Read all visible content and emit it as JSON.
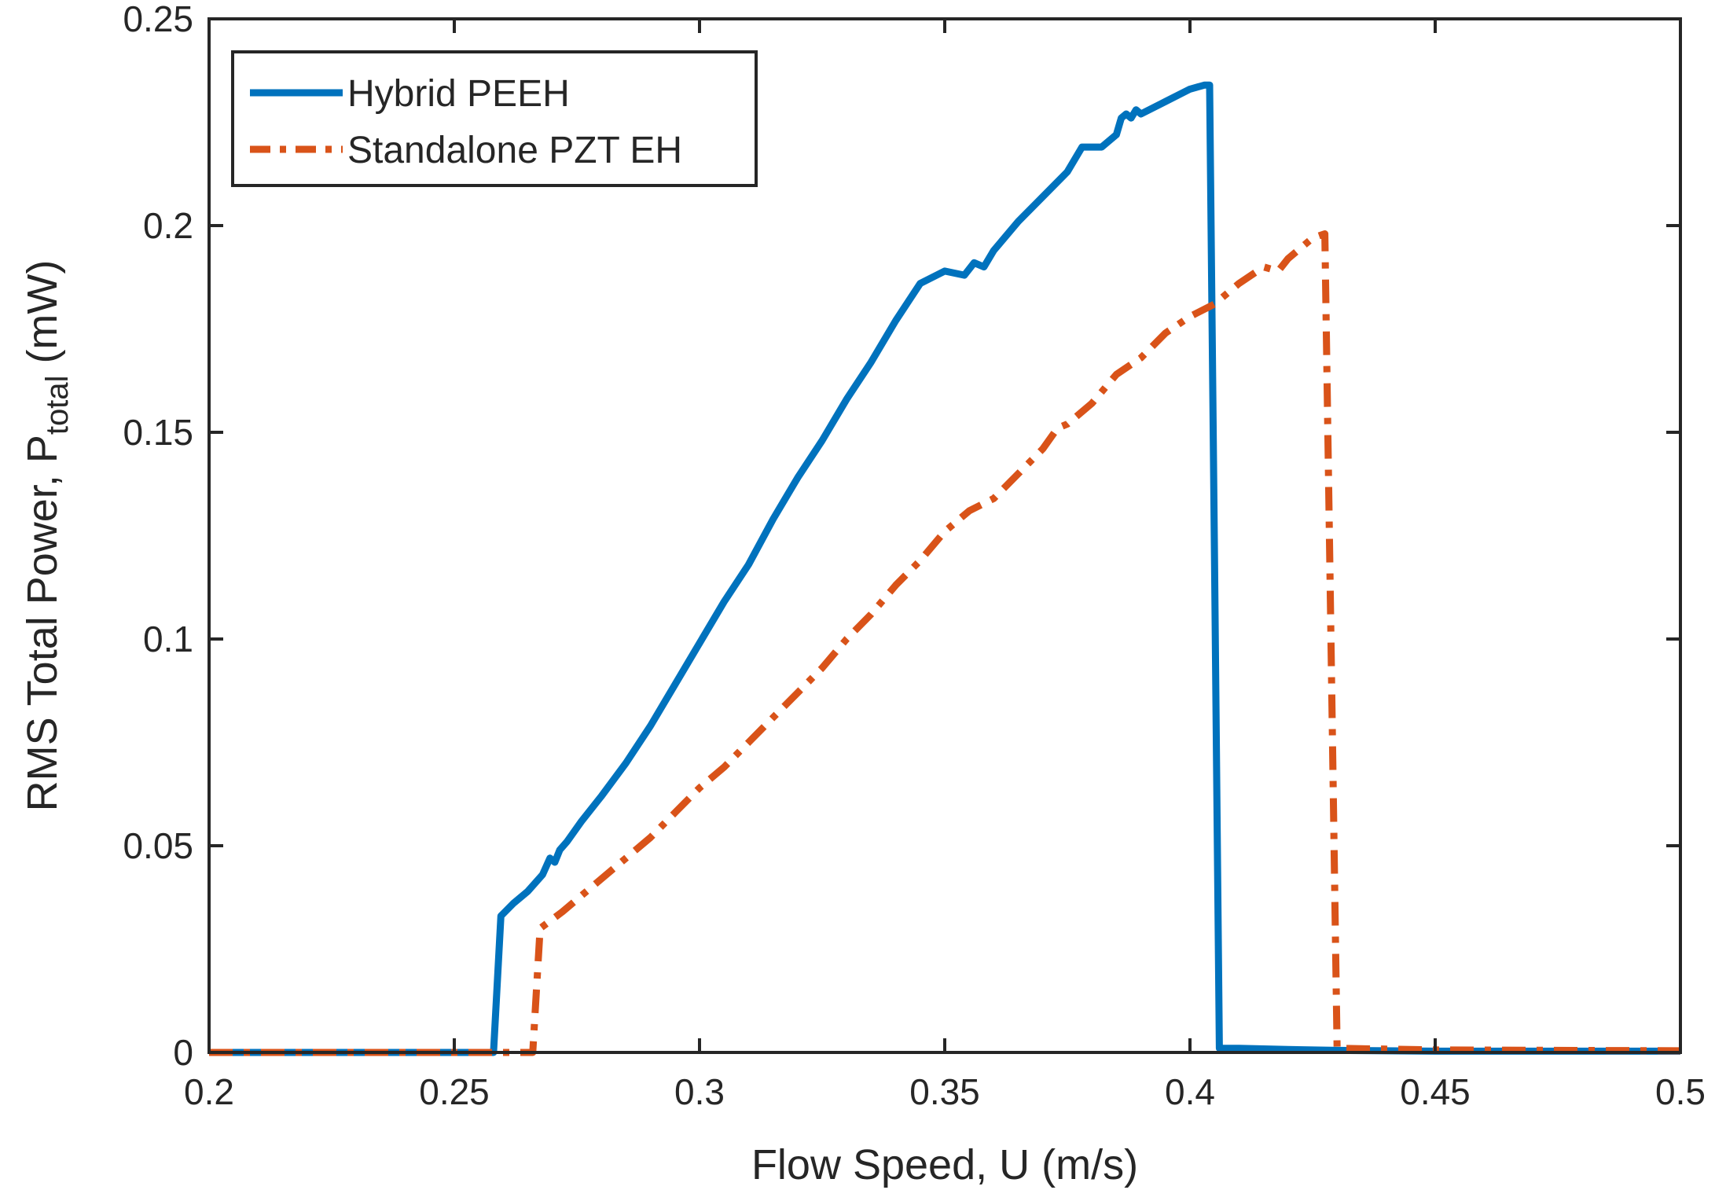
{
  "chart_data": {
    "type": "line",
    "title": "",
    "xlabel": "Flow Speed, U (m/s)",
    "ylabel_main": "RMS Total Power, P",
    "ylabel_sub": "total",
    "ylabel_unit": " (mW)",
    "xlim": [
      0.2,
      0.5
    ],
    "ylim": [
      0,
      0.25
    ],
    "xticks": [
      0.2,
      0.25,
      0.3,
      0.35,
      0.4,
      0.45,
      0.5
    ],
    "xtick_labels": [
      "0.2",
      "0.25",
      "0.3",
      "0.35",
      "0.4",
      "0.45",
      "0.5"
    ],
    "yticks": [
      0,
      0.05,
      0.1,
      0.15,
      0.2,
      0.25
    ],
    "ytick_labels": [
      "0",
      "0.05",
      "0.1",
      "0.15",
      "0.2",
      "0.25"
    ],
    "grid": false,
    "legend_position": "top-left",
    "series": [
      {
        "name": "Hybrid PEEH",
        "color": "#0072BD",
        "line_style": "solid",
        "x": [
          0.2,
          0.258,
          0.2595,
          0.262,
          0.265,
          0.268,
          0.2695,
          0.2705,
          0.2715,
          0.273,
          0.276,
          0.28,
          0.285,
          0.29,
          0.295,
          0.3,
          0.305,
          0.31,
          0.315,
          0.32,
          0.325,
          0.33,
          0.335,
          0.34,
          0.345,
          0.35,
          0.354,
          0.356,
          0.358,
          0.36,
          0.365,
          0.37,
          0.375,
          0.378,
          0.382,
          0.385,
          0.386,
          0.387,
          0.388,
          0.389,
          0.39,
          0.395,
          0.4,
          0.403,
          0.404,
          0.405,
          0.406,
          0.408,
          0.41,
          0.42,
          0.43,
          0.44,
          0.45,
          0.5
        ],
        "y": [
          0,
          0,
          0.033,
          0.036,
          0.039,
          0.043,
          0.047,
          0.046,
          0.049,
          0.051,
          0.056,
          0.062,
          0.07,
          0.079,
          0.089,
          0.099,
          0.109,
          0.118,
          0.129,
          0.139,
          0.148,
          0.158,
          0.167,
          0.177,
          0.186,
          0.189,
          0.188,
          0.191,
          0.19,
          0.194,
          0.201,
          0.207,
          0.213,
          0.219,
          0.219,
          0.222,
          0.226,
          0.227,
          0.226,
          0.228,
          0.227,
          0.23,
          0.233,
          0.234,
          0.234,
          0.12,
          0.001,
          0.001,
          0.001,
          0.0007,
          0.0005,
          0.0004,
          0.0003,
          0.0003
        ]
      },
      {
        "name": "Standalone PZT EH",
        "color": "#D95319",
        "line_style": "dash-dot",
        "x": [
          0.2,
          0.26,
          0.266,
          0.2675,
          0.272,
          0.276,
          0.28,
          0.285,
          0.29,
          0.295,
          0.3,
          0.305,
          0.31,
          0.315,
          0.32,
          0.325,
          0.33,
          0.335,
          0.34,
          0.345,
          0.35,
          0.355,
          0.36,
          0.365,
          0.37,
          0.373,
          0.375,
          0.38,
          0.385,
          0.39,
          0.395,
          0.4,
          0.405,
          0.41,
          0.415,
          0.418,
          0.42,
          0.425,
          0.4275,
          0.4285,
          0.43,
          0.44,
          0.45,
          0.5
        ],
        "y": [
          0,
          0,
          0,
          0.03,
          0.034,
          0.038,
          0.042,
          0.047,
          0.052,
          0.058,
          0.064,
          0.069,
          0.075,
          0.081,
          0.087,
          0.093,
          0.1,
          0.106,
          0.113,
          0.119,
          0.126,
          0.131,
          0.134,
          0.14,
          0.146,
          0.151,
          0.152,
          0.157,
          0.164,
          0.168,
          0.174,
          0.178,
          0.181,
          0.186,
          0.19,
          0.189,
          0.192,
          0.197,
          0.198,
          0.12,
          0.001,
          0.0008,
          0.0006,
          0.0004
        ]
      }
    ]
  }
}
